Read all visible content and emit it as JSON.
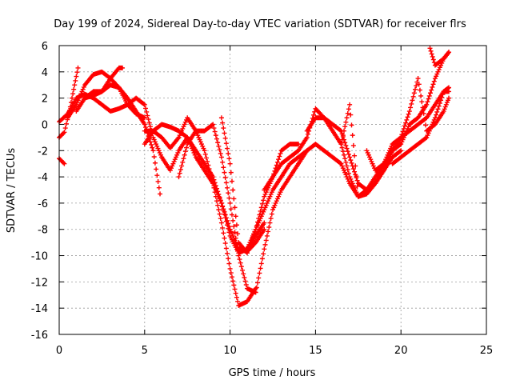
{
  "chart_data": {
    "type": "scatter",
    "title": "Day 199 of 2024, Sidereal Day-to-day VTEC variation (SDTVAR) for receiver flrs",
    "xlabel": "GPS time / hours",
    "ylabel": "SDTVAR / TECUs",
    "xlim": [
      0,
      25
    ],
    "ylim": [
      -16,
      6
    ],
    "xticks": [
      0,
      5,
      10,
      15,
      20,
      25
    ],
    "yticks": [
      -16,
      -14,
      -12,
      -10,
      -8,
      -6,
      -4,
      -2,
      0,
      2,
      4,
      6
    ],
    "grid": true,
    "marker": "plus",
    "color": "#ff0000",
    "series": [
      {
        "x": [
          0,
          0.3
        ],
        "y": [
          -2.6,
          -3.0
        ]
      },
      {
        "x": [
          0,
          0.3,
          0.6,
          0.9,
          1.1
        ],
        "y": [
          -1.0,
          -0.6,
          1.0,
          3.0,
          4.3
        ]
      },
      {
        "x": [
          0,
          0.5,
          1.0,
          1.5,
          2.0,
          2.5,
          3.0,
          3.5,
          4.0,
          4.5,
          5.0,
          5.5,
          6.0
        ],
        "y": [
          0.2,
          0.8,
          2.0,
          2.3,
          2.0,
          1.5,
          1.0,
          1.2,
          1.5,
          2.0,
          1.5,
          -1.0,
          -2.5
        ]
      },
      {
        "x": [
          0.5,
          1.0,
          1.5,
          2.0,
          2.5,
          3.0,
          3.5,
          4.0,
          4.5,
          5.0,
          5.5,
          5.9
        ],
        "y": [
          0.5,
          1.5,
          3.0,
          3.8,
          4.0,
          3.5,
          2.8,
          2.0,
          1.0,
          0.0,
          -2.0,
          -5.3
        ]
      },
      {
        "x": [
          1.0,
          1.5,
          2.0,
          2.5,
          3.0,
          3.5,
          3.7
        ],
        "y": [
          1.0,
          2.0,
          2.2,
          2.5,
          3.5,
          4.3,
          4.3
        ]
      },
      {
        "x": [
          1.5,
          2.0,
          2.5,
          3.0,
          3.5,
          4.0,
          4.5,
          5.0
        ],
        "y": [
          2.0,
          2.5,
          2.5,
          3.0,
          2.8,
          1.5,
          0.8,
          0.5
        ]
      },
      {
        "x": [
          5.0,
          5.5,
          6.0,
          6.5,
          7.0,
          7.5,
          8.0,
          8.5,
          9.0,
          9.5,
          10.0,
          10.5,
          11.0,
          11.5,
          12.0
        ],
        "y": [
          -1.5,
          -0.5,
          0.0,
          -0.2,
          -0.5,
          -1.0,
          -2.5,
          -3.5,
          -4.5,
          -6.0,
          -8.5,
          -9.8,
          -9.5,
          -8.5,
          -7.5
        ]
      },
      {
        "x": [
          5.0,
          5.5,
          6.0,
          6.5,
          7.0,
          7.5,
          8.0,
          8.5,
          9.0,
          9.5,
          10.0,
          10.5,
          11.0,
          11.5
        ],
        "y": [
          -0.5,
          -0.5,
          -1.0,
          -1.8,
          -1.0,
          0.5,
          -0.5,
          -2.0,
          -4.5,
          -7.5,
          -11.0,
          -13.8,
          -13.5,
          -12.5
        ]
      },
      {
        "x": [
          6.0,
          6.5,
          7.0,
          7.5,
          8.0,
          8.5,
          9.0,
          9.5,
          10.0,
          10.5,
          11.0,
          11.5,
          12.0
        ],
        "y": [
          -2.5,
          -3.5,
          -2.0,
          -1.0,
          -2.0,
          -3.0,
          -4.0,
          -6.0,
          -8.0,
          -9.5,
          -9.7,
          -9.0,
          -8.0
        ]
      },
      {
        "x": [
          7.0,
          7.5,
          8.0,
          8.5,
          9.0,
          9.5,
          10.0,
          10.5,
          11.0,
          11.5,
          12.0,
          12.5,
          13.0,
          13.5,
          14.0,
          14.5
        ],
        "y": [
          -4.0,
          -1.5,
          -0.5,
          -0.5,
          0.0,
          -2.5,
          -6.0,
          -10.0,
          -12.5,
          -12.8,
          -9.5,
          -6.5,
          -5.0,
          -4.0,
          -3.0,
          -2.0
        ]
      },
      {
        "x": [
          9.5,
          10.0,
          10.5,
          11.0,
          11.5,
          12.0,
          12.5,
          13.0,
          13.5,
          14.0
        ],
        "y": [
          0.5,
          -3.0,
          -9.0,
          -9.8,
          -8.0,
          -5.5,
          -4.0,
          -2.0,
          -1.5,
          -1.5
        ]
      },
      {
        "x": [
          11.0,
          11.5,
          12.0,
          12.5,
          13.0,
          13.5,
          14.0,
          14.5,
          15.0,
          15.5,
          16.0,
          16.5,
          17.0,
          17.5,
          18.0,
          18.5,
          19.0
        ],
        "y": [
          -9.5,
          -8.0,
          -6.5,
          -5.0,
          -4.0,
          -3.0,
          -2.5,
          -2.0,
          -1.5,
          -2.0,
          -2.5,
          -3.0,
          -4.5,
          -5.5,
          -5.0,
          -4.0,
          -3.0
        ]
      },
      {
        "x": [
          12.0,
          12.5,
          13.0,
          13.5,
          14.0,
          14.5,
          15.0,
          15.5,
          16.0,
          16.5,
          17.0,
          17.5,
          18.0,
          18.5,
          19.0,
          19.5,
          20.0
        ],
        "y": [
          -5.0,
          -4.0,
          -3.0,
          -2.5,
          -2.0,
          -1.0,
          1.2,
          0.5,
          -0.5,
          -1.5,
          -4.0,
          -5.5,
          -5.0,
          -4.5,
          -3.5,
          -2.5,
          -2.0
        ]
      },
      {
        "x": [
          14.5,
          15.0,
          15.5,
          16.0,
          16.5,
          17.0,
          17.5,
          18.0,
          18.5,
          19.0,
          19.5,
          20.0,
          20.5,
          21.0,
          21.5,
          22.0,
          22.5,
          22.8
        ],
        "y": [
          -0.5,
          0.5,
          0.5,
          0.0,
          -0.5,
          -2.5,
          -4.5,
          -5.0,
          -4.5,
          -3.0,
          -2.0,
          -1.5,
          0.0,
          0.5,
          1.5,
          3.5,
          5.0,
          5.5
        ]
      },
      {
        "x": [
          16.5,
          17.0,
          17.5,
          18.0,
          18.5,
          19.0,
          19.5,
          20.0,
          20.5,
          21.0,
          21.5,
          22.0,
          22.5,
          22.8
        ],
        "y": [
          -1.5,
          1.5,
          -5.5,
          -5.3,
          -4.5,
          -3.5,
          -2.0,
          -1.0,
          -0.5,
          0.0,
          0.5,
          1.5,
          2.5,
          2.5
        ]
      },
      {
        "x": [
          18.0,
          18.5,
          19.0,
          19.5,
          20.0,
          20.5,
          21.0,
          21.5,
          22.0,
          22.5,
          22.8
        ],
        "y": [
          -2.0,
          -3.5,
          -3.0,
          -1.5,
          -1.0,
          1.0,
          3.5,
          -0.5,
          0.0,
          1.0,
          2.0
        ]
      },
      {
        "x": [
          19.5,
          20.0,
          20.5,
          21.0,
          21.5,
          22.0,
          22.5,
          22.8
        ],
        "y": [
          -3.0,
          -2.5,
          -2.0,
          -1.5,
          -1.0,
          0.5,
          2.5,
          2.8
        ]
      },
      {
        "x": [
          21.7,
          22.0,
          22.5,
          22.8
        ],
        "y": [
          5.8,
          4.5,
          5.0,
          5.5
        ]
      }
    ]
  }
}
